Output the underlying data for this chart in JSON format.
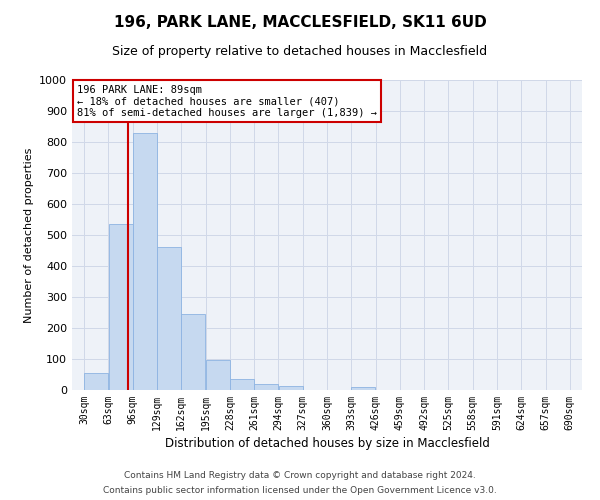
{
  "title1": "196, PARK LANE, MACCLESFIELD, SK11 6UD",
  "title2": "Size of property relative to detached houses in Macclesfield",
  "xlabel": "Distribution of detached houses by size in Macclesfield",
  "ylabel": "Number of detached properties",
  "footer1": "Contains HM Land Registry data © Crown copyright and database right 2024.",
  "footer2": "Contains public sector information licensed under the Open Government Licence v3.0.",
  "annotation_line1": "196 PARK LANE: 89sqm",
  "annotation_line2": "← 18% of detached houses are smaller (407)",
  "annotation_line3": "81% of semi-detached houses are larger (1,839) →",
  "property_size": 89,
  "bin_starts": [
    30,
    63,
    96,
    129,
    162,
    195,
    228,
    261,
    294,
    327,
    360,
    393,
    426,
    459,
    492,
    525,
    558,
    591,
    624,
    657,
    690
  ],
  "bar_values": [
    55,
    535,
    828,
    460,
    245,
    97,
    35,
    20,
    12,
    0,
    0,
    10,
    0,
    0,
    0,
    0,
    0,
    0,
    0,
    0
  ],
  "bar_color": "#c6d9f0",
  "bar_edge_color": "#8db3e2",
  "grid_color": "#d0d8e8",
  "background_color": "#eef2f8",
  "red_line_color": "#cc0000",
  "annotation_box_color": "#ffffff",
  "annotation_box_edge_color": "#cc0000",
  "ylim": [
    0,
    1000
  ],
  "yticks": [
    0,
    100,
    200,
    300,
    400,
    500,
    600,
    700,
    800,
    900,
    1000
  ]
}
